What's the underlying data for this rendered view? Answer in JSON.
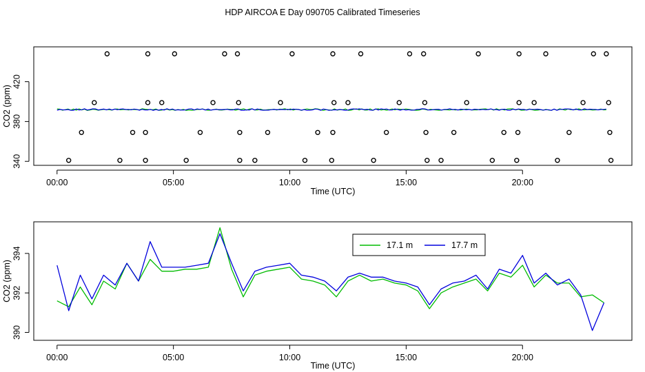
{
  "figure_title": "HDP AIRCOA E  Day 090705  Calibrated Timeseries",
  "colors": {
    "green": "#00bb00",
    "blue": "#0000dd",
    "black": "#000000"
  },
  "chart_data": [
    {
      "type": "scatter+line",
      "title": "HDP AIRCOA E  Day 090705  Calibrated Timeseries",
      "xlabel": "Time (UTC)",
      "ylabel": "CO2 (ppm)",
      "xlim": [
        -1,
        24.7
      ],
      "ylim": [
        336,
        455
      ],
      "xticks": [
        0,
        5,
        10,
        15,
        20
      ],
      "xtick_labels": [
        "00:00",
        "05:00",
        "10:00",
        "15:00",
        "20:00"
      ],
      "yticks": [
        340,
        380,
        420
      ],
      "ytick_labels": [
        "340",
        "380",
        "420"
      ],
      "calibration_points": {
        "marker": "open-circle",
        "color": "#000000",
        "x": [
          2.15,
          3.9,
          5.05,
          7.2,
          7.75,
          10.1,
          11.85,
          13.05,
          15.15,
          15.75,
          18.1,
          19.85,
          21.0,
          23.05,
          23.6,
          1.6,
          3.9,
          4.5,
          6.7,
          7.8,
          9.6,
          11.9,
          12.5,
          14.7,
          15.8,
          17.6,
          19.85,
          20.5,
          22.6,
          23.7,
          1.05,
          3.25,
          3.8,
          6.15,
          7.85,
          9.05,
          11.2,
          11.85,
          14.15,
          15.85,
          17.05,
          19.2,
          19.8,
          22.0,
          23.75,
          0.5,
          2.7,
          3.8,
          5.55,
          7.85,
          8.5,
          10.65,
          11.8,
          13.6,
          15.9,
          16.5,
          18.7,
          19.75,
          21.5,
          23.8
        ],
        "y": [
          448,
          448,
          448,
          448,
          448,
          448,
          448,
          448,
          448,
          448,
          448,
          448,
          448,
          448,
          448,
          399,
          399,
          399,
          399,
          399,
          399,
          399,
          399,
          399,
          399,
          399,
          399,
          399,
          399,
          399,
          369,
          369,
          369,
          369,
          369,
          369,
          369,
          369,
          369,
          369,
          369,
          369,
          369,
          369,
          369,
          341,
          341,
          341,
          341,
          341,
          341,
          341,
          341,
          341,
          341,
          341,
          341,
          341,
          341,
          341
        ]
      },
      "series": [
        {
          "name": "17.1 m",
          "color": "#00bb00",
          "style": "line",
          "y_level": 392.0,
          "x_range": [
            0,
            23.6
          ]
        },
        {
          "name": "17.7 m",
          "color": "#0000dd",
          "style": "line",
          "y_level": 392.0,
          "x_range": [
            0,
            23.6
          ]
        }
      ]
    },
    {
      "type": "line",
      "xlabel": "Time (UTC)",
      "ylabel": "CO2 (ppm)",
      "xlim": [
        -1,
        24.7
      ],
      "ylim": [
        389.6,
        395.6
      ],
      "xticks": [
        0,
        5,
        10,
        15,
        20
      ],
      "xtick_labels": [
        "00:00",
        "05:00",
        "10:00",
        "15:00",
        "20:00"
      ],
      "yticks": [
        390,
        392,
        394
      ],
      "ytick_labels": [
        "390",
        "392",
        "394"
      ],
      "legend": {
        "position": "top-center",
        "entries": [
          "17.1 m",
          "17.7 m"
        ]
      },
      "series": [
        {
          "name": "17.1 m",
          "color": "#00bb00",
          "x": [
            0,
            0.5,
            1,
            1.5,
            2,
            2.5,
            3,
            3.5,
            4,
            4.5,
            5,
            5.5,
            6,
            6.5,
            7,
            7.5,
            8,
            8.5,
            9,
            9.5,
            10,
            10.5,
            11,
            11.5,
            12,
            12.5,
            13,
            13.5,
            14,
            14.5,
            15,
            15.5,
            16,
            16.5,
            17,
            17.5,
            18,
            18.5,
            19,
            19.5,
            20,
            20.5,
            21,
            21.5,
            22,
            22.5,
            23,
            23.5
          ],
          "y": [
            391.6,
            391.3,
            392.3,
            391.4,
            392.6,
            392.2,
            393.5,
            392.6,
            393.7,
            393.1,
            393.1,
            393.2,
            393.2,
            393.3,
            395.3,
            393.2,
            391.8,
            392.9,
            393.1,
            393.2,
            393.3,
            392.7,
            392.6,
            392.4,
            391.8,
            392.6,
            392.9,
            392.6,
            392.7,
            392.5,
            392.4,
            392.1,
            391.2,
            392.0,
            392.3,
            392.5,
            392.7,
            392.1,
            393.0,
            392.8,
            393.4,
            392.3,
            392.9,
            392.5,
            392.5,
            391.8,
            391.9,
            391.5
          ]
        },
        {
          "name": "17.7 m",
          "color": "#0000dd",
          "x": [
            0,
            0.5,
            1,
            1.5,
            2,
            2.5,
            3,
            3.5,
            4,
            4.5,
            5,
            5.5,
            6,
            6.5,
            7,
            7.5,
            8,
            8.5,
            9,
            9.5,
            10,
            10.5,
            11,
            11.5,
            12,
            12.5,
            13,
            13.5,
            14,
            14.5,
            15,
            15.5,
            16,
            16.5,
            17,
            17.5,
            18,
            18.5,
            19,
            19.5,
            20,
            20.5,
            21,
            21.5,
            22,
            22.5,
            23,
            23.5
          ],
          "y": [
            393.4,
            391.1,
            392.9,
            391.7,
            392.9,
            392.4,
            393.5,
            392.6,
            394.6,
            393.3,
            393.3,
            393.3,
            393.4,
            393.5,
            395.0,
            393.5,
            392.1,
            393.1,
            393.3,
            393.4,
            393.5,
            392.9,
            392.8,
            392.6,
            392.1,
            392.8,
            393.0,
            392.8,
            392.8,
            392.6,
            392.5,
            392.3,
            391.4,
            392.2,
            392.5,
            392.6,
            392.9,
            392.2,
            393.2,
            393.0,
            393.9,
            392.5,
            393.0,
            392.4,
            392.7,
            391.9,
            390.1,
            391.5
          ]
        }
      ]
    }
  ]
}
